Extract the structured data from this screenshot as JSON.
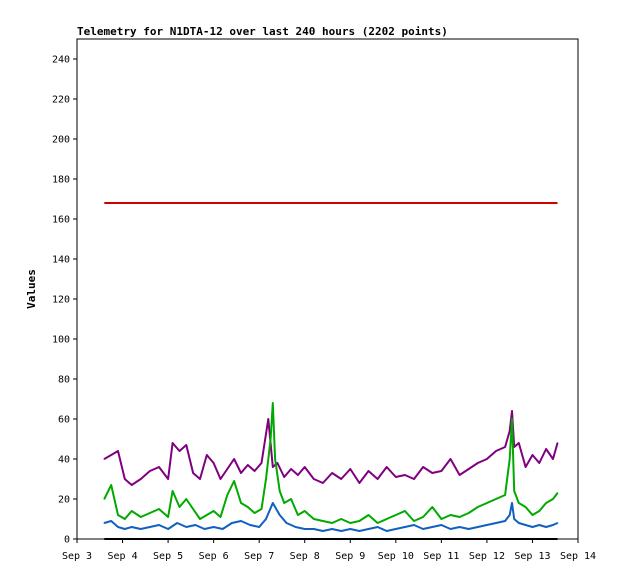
{
  "chart_data": {
    "type": "line",
    "title": "Telemetry for N1DTA-12 over last 240 hours (2202 points)",
    "ylabel": "Values",
    "xlabel": "",
    "ylim": [
      0,
      250
    ],
    "yticks": [
      0,
      20,
      40,
      60,
      80,
      100,
      120,
      140,
      160,
      180,
      200,
      220,
      240
    ],
    "xlim": [
      0,
      11
    ],
    "xtick_labels": [
      "Sep 3",
      "Sep 4",
      "Sep 5",
      "Sep 6",
      "Sep 7",
      "Sep 8",
      "Sep 9",
      "Sep 10",
      "Sep 11",
      "Sep 12",
      "Sep 13",
      "Sep 14"
    ],
    "grid": false,
    "legend": "none",
    "series": [
      {
        "color": "#cc0000",
        "x": [
          0.6,
          10.55
        ],
        "values": [
          168,
          168
        ]
      },
      {
        "color": "#800080",
        "x": [
          0.6,
          0.75,
          0.9,
          1.05,
          1.2,
          1.4,
          1.6,
          1.8,
          2.0,
          2.1,
          2.25,
          2.4,
          2.55,
          2.7,
          2.85,
          3.0,
          3.15,
          3.3,
          3.45,
          3.6,
          3.75,
          3.9,
          4.05,
          4.2,
          4.3,
          4.4,
          4.55,
          4.7,
          4.85,
          5.0,
          5.2,
          5.4,
          5.6,
          5.8,
          6.0,
          6.2,
          6.4,
          6.6,
          6.8,
          7.0,
          7.2,
          7.4,
          7.6,
          7.8,
          8.0,
          8.2,
          8.4,
          8.6,
          8.8,
          9.0,
          9.2,
          9.4,
          9.5,
          9.55,
          9.6,
          9.7,
          9.85,
          10.0,
          10.15,
          10.3,
          10.45,
          10.55
        ],
        "values": [
          40,
          42,
          44,
          30,
          27,
          30,
          34,
          36,
          30,
          48,
          44,
          47,
          33,
          30,
          42,
          38,
          30,
          35,
          40,
          33,
          37,
          34,
          38,
          60,
          36,
          38,
          31,
          35,
          32,
          36,
          30,
          28,
          33,
          30,
          35,
          28,
          34,
          30,
          36,
          31,
          32,
          30,
          36,
          33,
          34,
          40,
          32,
          35,
          38,
          40,
          44,
          46,
          54,
          64,
          46,
          48,
          36,
          42,
          38,
          45,
          40,
          48
        ]
      },
      {
        "color": "#00aa00",
        "x": [
          0.6,
          0.75,
          0.9,
          1.05,
          1.2,
          1.4,
          1.6,
          1.8,
          2.0,
          2.1,
          2.25,
          2.4,
          2.55,
          2.7,
          2.85,
          3.0,
          3.15,
          3.3,
          3.45,
          3.6,
          3.75,
          3.9,
          4.05,
          4.15,
          4.25,
          4.3,
          4.35,
          4.45,
          4.55,
          4.7,
          4.85,
          5.0,
          5.2,
          5.4,
          5.6,
          5.8,
          6.0,
          6.2,
          6.4,
          6.6,
          6.8,
          7.0,
          7.2,
          7.4,
          7.6,
          7.8,
          8.0,
          8.2,
          8.4,
          8.6,
          8.8,
          9.0,
          9.2,
          9.4,
          9.5,
          9.55,
          9.6,
          9.7,
          9.85,
          10.0,
          10.15,
          10.3,
          10.45,
          10.55
        ],
        "values": [
          20,
          27,
          12,
          10,
          14,
          11,
          13,
          15,
          11,
          24,
          16,
          20,
          15,
          10,
          12,
          14,
          11,
          22,
          29,
          18,
          16,
          13,
          15,
          30,
          50,
          68,
          40,
          24,
          18,
          20,
          12,
          14,
          10,
          9,
          8,
          10,
          8,
          9,
          12,
          8,
          10,
          12,
          14,
          9,
          11,
          16,
          10,
          12,
          11,
          13,
          16,
          18,
          20,
          22,
          40,
          60,
          24,
          18,
          16,
          12,
          14,
          18,
          20,
          23
        ]
      },
      {
        "color": "#1060c0",
        "x": [
          0.6,
          0.75,
          0.9,
          1.05,
          1.2,
          1.4,
          1.6,
          1.8,
          2.0,
          2.2,
          2.4,
          2.6,
          2.8,
          3.0,
          3.2,
          3.4,
          3.6,
          3.8,
          4.0,
          4.15,
          4.3,
          4.45,
          4.6,
          4.8,
          5.0,
          5.2,
          5.4,
          5.6,
          5.8,
          6.0,
          6.2,
          6.4,
          6.6,
          6.8,
          7.0,
          7.2,
          7.4,
          7.6,
          7.8,
          8.0,
          8.2,
          8.4,
          8.6,
          8.8,
          9.0,
          9.2,
          9.4,
          9.5,
          9.55,
          9.6,
          9.7,
          9.85,
          10.0,
          10.15,
          10.3,
          10.45,
          10.55
        ],
        "values": [
          8,
          9,
          6,
          5,
          6,
          5,
          6,
          7,
          5,
          8,
          6,
          7,
          5,
          6,
          5,
          8,
          9,
          7,
          6,
          10,
          18,
          12,
          8,
          6,
          5,
          5,
          4,
          5,
          4,
          5,
          4,
          5,
          6,
          4,
          5,
          6,
          7,
          5,
          6,
          7,
          5,
          6,
          5,
          6,
          7,
          8,
          9,
          12,
          18,
          10,
          8,
          7,
          6,
          7,
          6,
          7,
          8
        ]
      },
      {
        "color": "#000000",
        "x": [
          0.6,
          10.55
        ],
        "values": [
          0,
          0
        ]
      }
    ]
  }
}
